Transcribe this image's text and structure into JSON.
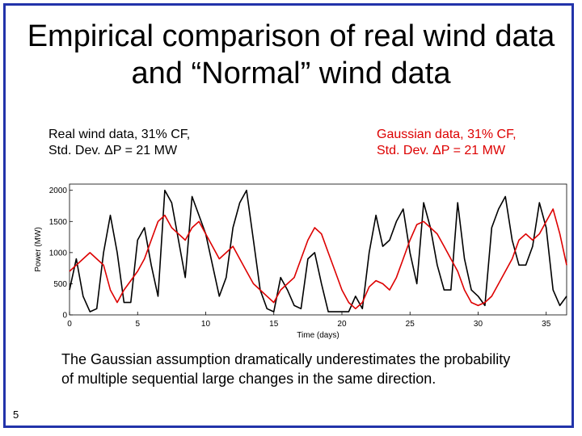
{
  "slide": {
    "title": "Empirical comparison of real wind data and “Normal” wind data",
    "page_number": "5",
    "note": "The Gaussian assumption dramatically underestimates the probability of multiple sequential large changes in the same direction."
  },
  "legend": {
    "real_line1": "Real wind data, 31% CF,",
    "real_line2": "Std. Dev. ΔP = 21 MW",
    "gauss_line1": "Gaussian data, 31% CF,",
    "gauss_line2": "Std. Dev. ΔP = 21 MW"
  },
  "colors": {
    "frame": "#2233aa",
    "real": "#000000",
    "gaussian": "#dd0000",
    "gaussian_label": "#dd0000"
  },
  "chart_data": {
    "type": "line",
    "xlabel": "Time (days)",
    "ylabel": "Power (MW)",
    "xlim": [
      0,
      36.5
    ],
    "ylim": [
      0,
      2100
    ],
    "xticks": [
      0,
      5,
      10,
      15,
      20,
      25,
      30,
      35
    ],
    "yticks": [
      0,
      500,
      1000,
      1500,
      2000
    ],
    "grid": false,
    "series": [
      {
        "name": "Real wind data, 31% CF, Std. Dev. ΔP = 21 MW",
        "color": "#000000",
        "x": [
          0,
          0.5,
          1,
          1.5,
          2,
          2.5,
          3,
          3.5,
          4,
          4.5,
          5,
          5.5,
          6,
          6.5,
          7,
          7.5,
          8,
          8.5,
          9,
          9.5,
          10,
          10.5,
          11,
          11.5,
          12,
          12.5,
          13,
          13.5,
          14,
          14.5,
          15,
          15.5,
          16,
          16.5,
          17,
          17.5,
          18,
          18.5,
          19,
          19.5,
          20,
          20.5,
          21,
          21.5,
          22,
          22.5,
          23,
          23.5,
          24,
          24.5,
          25,
          25.5,
          26,
          26.5,
          27,
          27.5,
          28,
          28.5,
          29,
          29.5,
          30,
          30.5,
          31,
          31.5,
          32,
          32.5,
          33,
          33.5,
          34,
          34.5,
          35,
          35.5,
          36,
          36.5
        ],
        "y": [
          400,
          900,
          300,
          50,
          100,
          1000,
          1600,
          1000,
          200,
          200,
          1200,
          1400,
          800,
          300,
          2000,
          1800,
          1200,
          600,
          1900,
          1600,
          1300,
          800,
          300,
          600,
          1400,
          1800,
          2000,
          1200,
          400,
          100,
          50,
          600,
          400,
          150,
          100,
          900,
          1000,
          500,
          50,
          50,
          50,
          50,
          300,
          100,
          1000,
          1600,
          1100,
          1200,
          1500,
          1700,
          1000,
          500,
          1800,
          1400,
          800,
          400,
          400,
          1800,
          900,
          400,
          300,
          150,
          1400,
          1700,
          1900,
          1200,
          800,
          800,
          1100,
          1800,
          1400,
          400,
          150,
          300
        ]
      },
      {
        "name": "Gaussian data, 31% CF, Std. Dev. ΔP = 21 MW",
        "color": "#dd0000",
        "x": [
          0,
          0.5,
          1,
          1.5,
          2,
          2.5,
          3,
          3.5,
          4,
          4.5,
          5,
          5.5,
          6,
          6.5,
          7,
          7.5,
          8,
          8.5,
          9,
          9.5,
          10,
          10.5,
          11,
          11.5,
          12,
          12.5,
          13,
          13.5,
          14,
          14.5,
          15,
          15.5,
          16,
          16.5,
          17,
          17.5,
          18,
          18.5,
          19,
          19.5,
          20,
          20.5,
          21,
          21.5,
          22,
          22.5,
          23,
          23.5,
          24,
          24.5,
          25,
          25.5,
          26,
          26.5,
          27,
          27.5,
          28,
          28.5,
          29,
          29.5,
          30,
          30.5,
          31,
          31.5,
          32,
          32.5,
          33,
          33.5,
          34,
          34.5,
          35,
          35.5,
          36,
          36.5
        ],
        "y": [
          700,
          800,
          900,
          1000,
          900,
          800,
          400,
          200,
          400,
          550,
          700,
          900,
          1200,
          1500,
          1600,
          1400,
          1300,
          1200,
          1400,
          1500,
          1300,
          1100,
          900,
          1000,
          1100,
          900,
          700,
          500,
          400,
          300,
          200,
          400,
          500,
          600,
          900,
          1200,
          1400,
          1300,
          1000,
          700,
          400,
          200,
          100,
          200,
          450,
          550,
          500,
          400,
          600,
          900,
          1200,
          1450,
          1500,
          1400,
          1300,
          1100,
          900,
          700,
          400,
          200,
          150,
          200,
          300,
          500,
          700,
          900,
          1200,
          1300,
          1200,
          1300,
          1500,
          1700,
          1300,
          800
        ]
      }
    ]
  }
}
